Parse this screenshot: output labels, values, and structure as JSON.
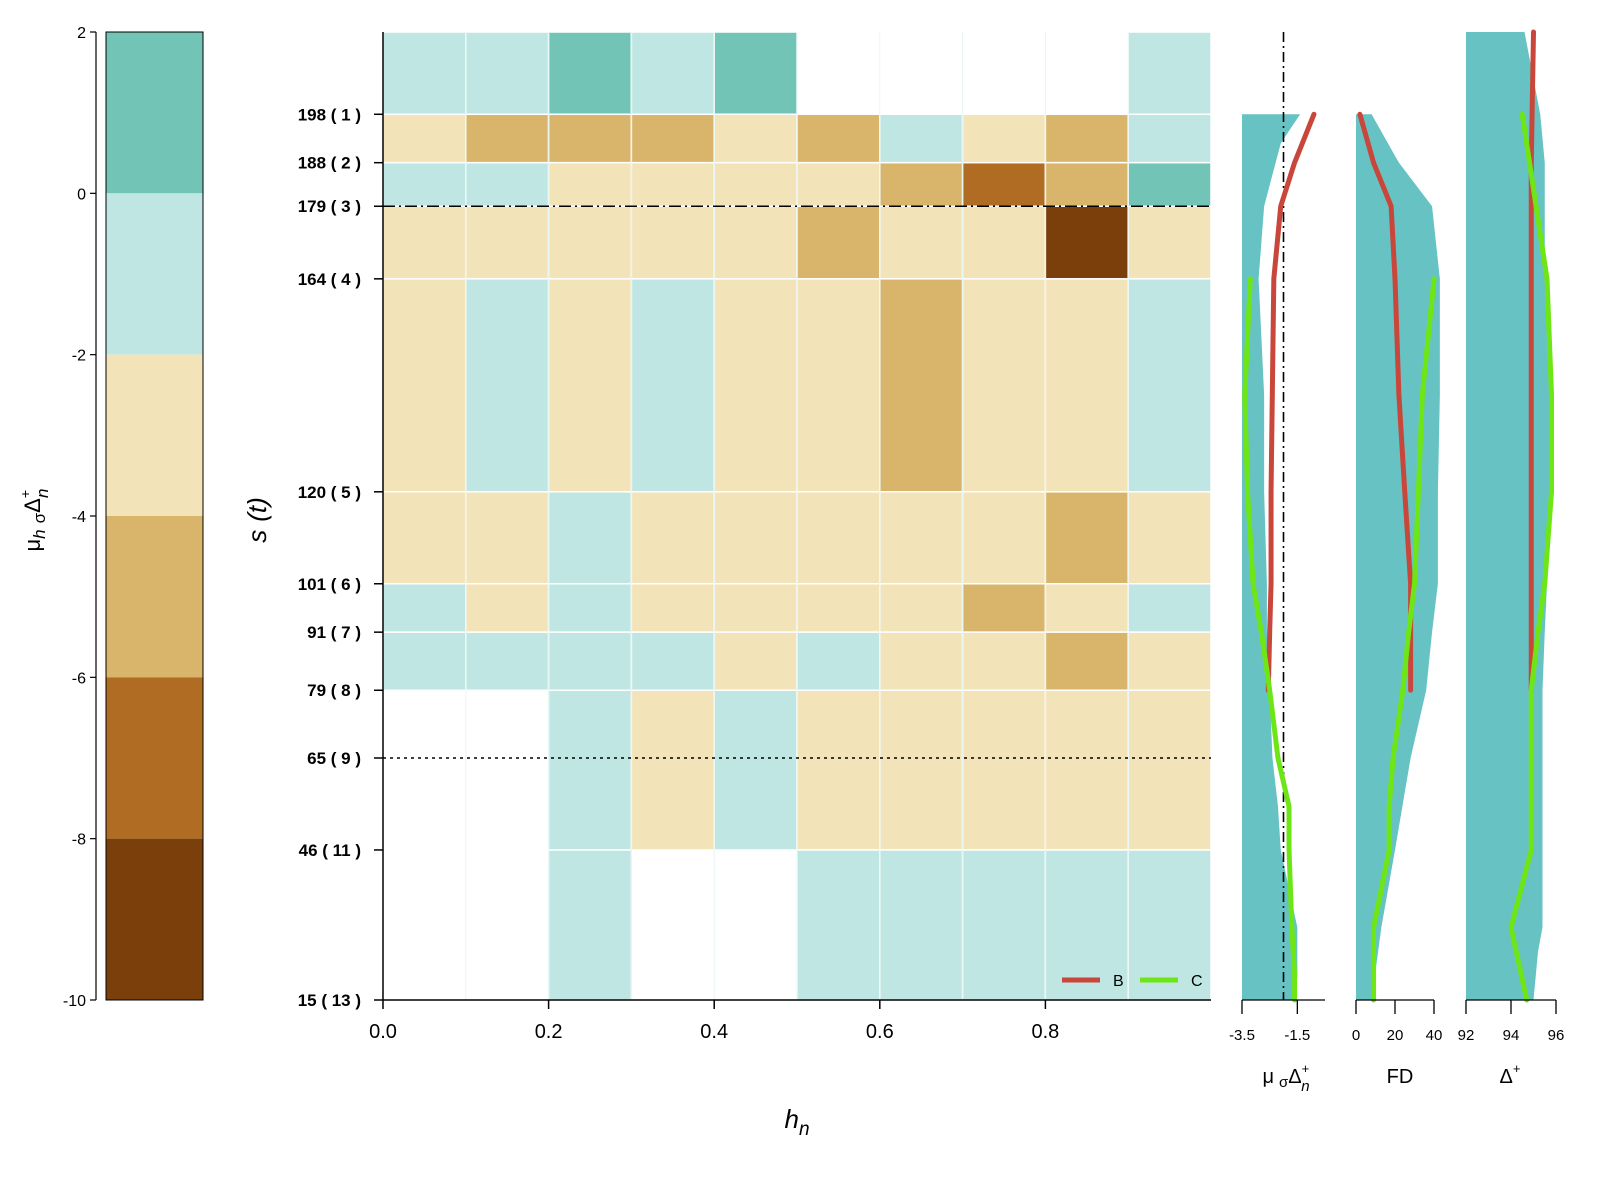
{
  "colors": {
    "bin_pos": "#72c4b6",
    "bin_0": "#bfe6e2",
    "bin_m2": "#f3e3b8",
    "bin_m4": "#d8b56a",
    "bin_m6": "#b06c22",
    "bin_m8": "#7a3f0b",
    "band": "#67c2c3",
    "line_B": "#c8473a",
    "line_C": "#6ee616"
  },
  "chart_data": [
    {
      "type": "heatmap",
      "name": "colorbar",
      "ylabel": "μ_h σΔ⁺_n",
      "ylabel_parts": {
        "mu": "μ",
        "h": "h",
        "sigma": "σ",
        "delta": "Δ",
        "plus": "+",
        "n": "n"
      },
      "ylim": [
        -10,
        2
      ],
      "ticks": [
        "2",
        "0",
        "-2",
        "-4",
        "-6",
        "-8",
        "-10"
      ],
      "bins": [
        {
          "from": 0,
          "to": 2,
          "color": "bin_pos"
        },
        {
          "from": -2,
          "to": 0,
          "color": "bin_0"
        },
        {
          "from": -4,
          "to": -2,
          "color": "bin_m2"
        },
        {
          "from": -6,
          "to": -4,
          "color": "bin_m4"
        },
        {
          "from": -8,
          "to": -6,
          "color": "bin_m6"
        },
        {
          "from": -10,
          "to": -8,
          "color": "bin_m8"
        }
      ]
    },
    {
      "type": "heatmap",
      "name": "main",
      "xlabel": "h_n",
      "xlabel_parts": {
        "h": "h",
        "n": "n"
      },
      "ylabel": "s (t)",
      "ylabel_parts": {
        "s": "s",
        "t": "t"
      },
      "xlim": [
        0,
        1
      ],
      "xticks": [
        "0.0",
        "0.2",
        "0.4",
        "0.6",
        "0.8"
      ],
      "xtick_values": [
        0,
        0.2,
        0.4,
        0.6,
        0.8
      ],
      "ylim": [
        15,
        215
      ],
      "ytick_values": [
        198,
        188,
        179,
        164,
        120,
        101,
        91,
        79,
        65,
        46,
        15
      ],
      "yticks": [
        "198 ( 1 )",
        "188 ( 2 )",
        "179 ( 3 )",
        "164 ( 4 )",
        "120 ( 5 )",
        "101 ( 6 )",
        "91 ( 7 )",
        "79 ( 8 )",
        "65 ( 9 )",
        "46 ( 11 )",
        "15 ( 13 )"
      ],
      "row_bounds": [
        215,
        198,
        188,
        179,
        164,
        120,
        101,
        91,
        79,
        46,
        15
      ],
      "col_bounds": [
        0,
        0.1,
        0.2,
        0.3,
        0.4,
        0.5,
        0.6,
        0.7,
        0.8,
        0.9,
        1.0
      ],
      "cells": [
        [
          "bin_0",
          "bin_0",
          "bin_pos",
          "bin_0",
          "bin_pos",
          null,
          null,
          null,
          null,
          "bin_0"
        ],
        [
          "bin_m2",
          "bin_m4",
          "bin_m4",
          "bin_m4",
          "bin_m2",
          "bin_m4",
          "bin_0",
          "bin_m2",
          "bin_m4",
          "bin_0"
        ],
        [
          "bin_0",
          "bin_0",
          "bin_m2",
          "bin_m2",
          "bin_m2",
          "bin_m2",
          "bin_m4",
          "bin_m6",
          "bin_m4",
          "bin_pos"
        ],
        [
          "bin_m2",
          "bin_m2",
          "bin_m2",
          "bin_m2",
          "bin_m2",
          "bin_m4",
          "bin_m2",
          "bin_m2",
          "bin_m8",
          "bin_m2"
        ],
        [
          "bin_m2",
          "bin_0",
          "bin_m2",
          "bin_0",
          "bin_m2",
          "bin_m2",
          "bin_m4",
          "bin_m2",
          "bin_m2",
          "bin_0"
        ],
        [
          "bin_m2",
          "bin_m2",
          "bin_0",
          "bin_m2",
          "bin_m2",
          "bin_m2",
          "bin_m2",
          "bin_m2",
          "bin_m4",
          "bin_m2"
        ],
        [
          "bin_0",
          "bin_m2",
          "bin_0",
          "bin_m2",
          "bin_m2",
          "bin_m2",
          "bin_m2",
          "bin_m4",
          "bin_m2",
          "bin_0"
        ],
        [
          "bin_0",
          "bin_0",
          "bin_0",
          "bin_0",
          "bin_m2",
          "bin_0",
          "bin_m2",
          "bin_m2",
          "bin_m4",
          "bin_m2"
        ],
        [
          null,
          null,
          "bin_0",
          "bin_m2",
          "bin_0",
          "bin_m2",
          "bin_m2",
          "bin_m2",
          "bin_m2",
          "bin_m2"
        ],
        [
          null,
          null,
          "bin_0",
          null,
          null,
          "bin_0",
          "bin_0",
          "bin_0",
          "bin_0",
          "bin_0"
        ]
      ],
      "hlines": [
        {
          "y": 179,
          "style": "dashdot"
        },
        {
          "y": 65,
          "style": "dotted"
        }
      ],
      "legend": {
        "placement": "bottom-right",
        "entries": [
          {
            "name": "B",
            "color": "line_B"
          },
          {
            "name": "C",
            "color": "line_C"
          }
        ]
      }
    },
    {
      "type": "line",
      "name": "mu_panel",
      "xlabel": "μ σΔ⁺_n",
      "xlabel_parts": {
        "mu": "μ",
        "sigma": "σ",
        "delta": "Δ",
        "plus": "+",
        "n": "n"
      },
      "xticks": [
        "-3.5",
        "-1.5"
      ],
      "xtick_values": [
        -3.5,
        -1.5
      ],
      "xlim": [
        -3.5,
        -0.5
      ],
      "ref_x": -2.0,
      "band": {
        "y": [
          198,
          192,
          179,
          164,
          140,
          120,
          101,
          91,
          79,
          65,
          55,
          46,
          30,
          20,
          15
        ],
        "lo": [
          -3.5,
          -3.5,
          -3.5,
          -3.5,
          -3.5,
          -3.5,
          -3.5,
          -3.5,
          -3.5,
          -3.5,
          -3.5,
          -3.5,
          -3.5,
          -3.5,
          -3.5
        ],
        "hi": [
          -1.4,
          -2.1,
          -2.7,
          -2.9,
          -2.7,
          -2.7,
          -2.6,
          -2.6,
          -2.5,
          -2.4,
          -2.2,
          -2.1,
          -1.5,
          -1.5,
          -1.6
        ]
      },
      "series": [
        {
          "name": "B",
          "color": "line_B",
          "y": [
            198,
            188,
            179,
            164,
            120,
            101,
            91,
            79
          ],
          "x": [
            -0.9,
            -1.6,
            -2.1,
            -2.35,
            -2.45,
            -2.45,
            -2.5,
            -2.55
          ]
        },
        {
          "name": "C",
          "color": "line_C",
          "y": [
            164,
            140,
            120,
            101,
            91,
            79,
            65,
            55,
            46,
            30,
            20,
            15
          ],
          "x": [
            -3.2,
            -3.4,
            -3.3,
            -3.1,
            -2.8,
            -2.5,
            -2.2,
            -1.8,
            -1.8,
            -1.7,
            -1.6,
            -1.6
          ]
        }
      ]
    },
    {
      "type": "line",
      "name": "fd_panel",
      "xlabel": "FD",
      "xticks": [
        "0",
        "20",
        "40"
      ],
      "xtick_values": [
        0,
        20,
        40
      ],
      "xlim": [
        0,
        40
      ],
      "band": {
        "y": [
          198,
          188,
          179,
          164,
          140,
          120,
          101,
          91,
          79,
          65,
          46,
          30,
          15
        ],
        "lo": [
          0,
          0,
          0,
          0,
          0,
          0,
          0,
          0,
          0,
          0,
          0,
          0,
          0
        ],
        "hi": [
          8,
          22,
          39,
          43,
          43,
          42,
          42,
          39,
          36,
          28,
          20,
          13,
          8
        ]
      },
      "series": [
        {
          "name": "B",
          "color": "line_B",
          "y": [
            198,
            188,
            179,
            164,
            140,
            120,
            101,
            91,
            79
          ],
          "x": [
            2,
            9,
            18,
            20,
            22,
            25,
            28,
            28,
            28
          ]
        },
        {
          "name": "C",
          "color": "line_C",
          "y": [
            164,
            140,
            120,
            101,
            91,
            79,
            65,
            55,
            46,
            30,
            15
          ],
          "x": [
            40,
            34,
            32,
            30,
            27,
            24,
            19,
            17,
            17,
            9,
            9
          ]
        }
      ]
    },
    {
      "type": "line",
      "name": "delta_panel",
      "xlabel": "Δ⁺",
      "xlabel_parts": {
        "delta": "Δ",
        "plus": "+"
      },
      "xticks": [
        "92",
        "94",
        "96"
      ],
      "xtick_values": [
        92,
        94,
        96
      ],
      "xlim": [
        92,
        96
      ],
      "band": {
        "y": [
          215,
          198,
          188,
          164,
          140,
          120,
          101,
          91,
          79,
          65,
          46,
          30,
          25,
          15
        ],
        "lo": [
          92,
          92,
          92,
          92,
          92,
          92,
          92,
          92,
          92,
          92,
          92,
          92,
          92,
          92
        ],
        "hi": [
          94.6,
          95.3,
          95.5,
          95.5,
          95.7,
          95.7,
          95.6,
          95.5,
          95.4,
          95.4,
          95.4,
          95.4,
          95.2,
          95.0
        ]
      },
      "series": [
        {
          "name": "B",
          "color": "line_B",
          "y": [
            215,
            188,
            164,
            120,
            101,
            91,
            79
          ],
          "x": [
            95.0,
            94.9,
            94.9,
            94.9,
            94.9,
            94.9,
            94.9
          ]
        },
        {
          "name": "C",
          "color": "line_C",
          "y": [
            198,
            164,
            140,
            120,
            101,
            91,
            79,
            65,
            46,
            30,
            15
          ],
          "x": [
            94.5,
            95.6,
            95.8,
            95.8,
            95.5,
            95.2,
            94.9,
            94.9,
            94.9,
            94.0,
            94.7
          ]
        }
      ]
    }
  ]
}
